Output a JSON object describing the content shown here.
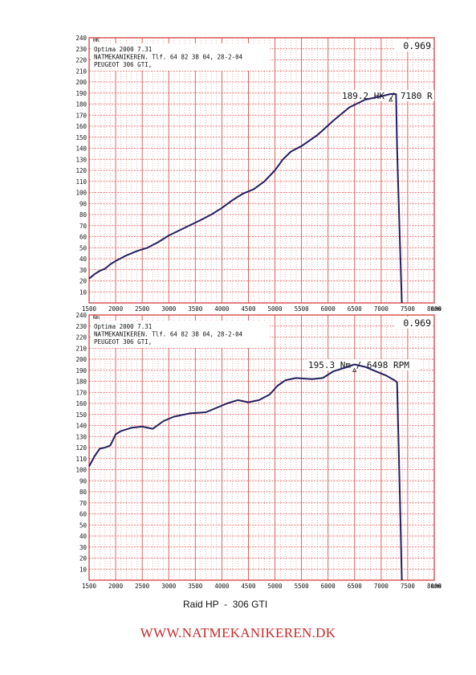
{
  "chart_data": [
    {
      "type": "line",
      "y_unit_label": "HK",
      "factor": "0.969",
      "header_lines": [
        "Optima 2000 7.31",
        "NATMEKANIKEREN. Tlf. 64 82 38 04, 28-2-04",
        "PEUGEOT 306 GTI,"
      ],
      "peak_label": "189.2 HK / 7180 R",
      "peak": {
        "x": 7180,
        "y": 189.2
      },
      "xlim": [
        1500,
        8000
      ],
      "ylim": [
        0,
        240
      ],
      "x_ticks": [
        "1500",
        "2000",
        "2500",
        "3000",
        "3500",
        "4000",
        "4500",
        "5000",
        "5500",
        "6000",
        "6500",
        "7000",
        "7500",
        "8000"
      ],
      "x_unit_label": "RPM",
      "y_ticks": [
        "10",
        "20",
        "30",
        "40",
        "50",
        "60",
        "70",
        "80",
        "90",
        "100",
        "110",
        "120",
        "130",
        "140",
        "150",
        "160",
        "170",
        "180",
        "190",
        "200",
        "210",
        "220",
        "230",
        "240"
      ],
      "grid": true,
      "series": [
        {
          "values": [
            {
              "x": 1500,
              "y": 22
            },
            {
              "x": 1600,
              "y": 26
            },
            {
              "x": 1700,
              "y": 29
            },
            {
              "x": 1800,
              "y": 31
            },
            {
              "x": 1900,
              "y": 35
            },
            {
              "x": 2000,
              "y": 38
            },
            {
              "x": 2200,
              "y": 43
            },
            {
              "x": 2400,
              "y": 47
            },
            {
              "x": 2600,
              "y": 50
            },
            {
              "x": 2800,
              "y": 55
            },
            {
              "x": 3000,
              "y": 61
            },
            {
              "x": 3300,
              "y": 68
            },
            {
              "x": 3600,
              "y": 75
            },
            {
              "x": 3800,
              "y": 80
            },
            {
              "x": 4000,
              "y": 86
            },
            {
              "x": 4200,
              "y": 93
            },
            {
              "x": 4400,
              "y": 99
            },
            {
              "x": 4600,
              "y": 103
            },
            {
              "x": 4800,
              "y": 110
            },
            {
              "x": 5000,
              "y": 120
            },
            {
              "x": 5150,
              "y": 130
            },
            {
              "x": 5300,
              "y": 137
            },
            {
              "x": 5500,
              "y": 142
            },
            {
              "x": 5800,
              "y": 152
            },
            {
              "x": 6100,
              "y": 165
            },
            {
              "x": 6400,
              "y": 177
            },
            {
              "x": 6700,
              "y": 184
            },
            {
              "x": 7000,
              "y": 187
            },
            {
              "x": 7180,
              "y": 189.2
            },
            {
              "x": 7280,
              "y": 189
            },
            {
              "x": 7300,
              "y": 140
            },
            {
              "x": 7350,
              "y": 60
            },
            {
              "x": 7390,
              "y": 0
            }
          ]
        }
      ]
    },
    {
      "type": "line",
      "y_unit_label": "Nm",
      "factor": "0.969",
      "header_lines": [
        "Optima 2000 7.31",
        "NATMEKANIKEREN. Tlf. 64 82 38 04, 28-2-04",
        "PEUGEOT 306 GTI,"
      ],
      "peak_label": "195.3 Nm / 6498 RPM",
      "peak": {
        "x": 6498,
        "y": 195.3
      },
      "xlim": [
        1500,
        8000
      ],
      "ylim": [
        0,
        240
      ],
      "x_ticks": [
        "1500",
        "2000",
        "2500",
        "3000",
        "3500",
        "4000",
        "4500",
        "5000",
        "5500",
        "6000",
        "6500",
        "7000",
        "7500",
        "8000"
      ],
      "x_unit_label": "RPM",
      "y_ticks": [
        "10",
        "20",
        "30",
        "40",
        "50",
        "60",
        "70",
        "80",
        "90",
        "100",
        "110",
        "120",
        "130",
        "140",
        "150",
        "160",
        "170",
        "180",
        "190",
        "200",
        "210",
        "220",
        "230",
        "240"
      ],
      "grid": true,
      "series": [
        {
          "values": [
            {
              "x": 1500,
              "y": 103
            },
            {
              "x": 1600,
              "y": 112
            },
            {
              "x": 1700,
              "y": 119
            },
            {
              "x": 1800,
              "y": 120
            },
            {
              "x": 1900,
              "y": 122
            },
            {
              "x": 2000,
              "y": 132
            },
            {
              "x": 2100,
              "y": 135
            },
            {
              "x": 2300,
              "y": 138
            },
            {
              "x": 2500,
              "y": 139
            },
            {
              "x": 2700,
              "y": 137
            },
            {
              "x": 2900,
              "y": 144
            },
            {
              "x": 3100,
              "y": 148
            },
            {
              "x": 3400,
              "y": 151
            },
            {
              "x": 3700,
              "y": 152
            },
            {
              "x": 3900,
              "y": 156
            },
            {
              "x": 4100,
              "y": 160
            },
            {
              "x": 4300,
              "y": 163
            },
            {
              "x": 4500,
              "y": 161
            },
            {
              "x": 4700,
              "y": 163
            },
            {
              "x": 4900,
              "y": 168
            },
            {
              "x": 5050,
              "y": 176
            },
            {
              "x": 5200,
              "y": 181
            },
            {
              "x": 5400,
              "y": 183
            },
            {
              "x": 5700,
              "y": 182
            },
            {
              "x": 5900,
              "y": 183
            },
            {
              "x": 6100,
              "y": 189
            },
            {
              "x": 6300,
              "y": 192
            },
            {
              "x": 6498,
              "y": 195.3
            },
            {
              "x": 6700,
              "y": 193
            },
            {
              "x": 6900,
              "y": 189
            },
            {
              "x": 7100,
              "y": 185
            },
            {
              "x": 7250,
              "y": 181
            },
            {
              "x": 7300,
              "y": 179
            },
            {
              "x": 7320,
              "y": 140
            },
            {
              "x": 7360,
              "y": 60
            },
            {
              "x": 7390,
              "y": 0
            }
          ]
        }
      ]
    }
  ],
  "caption": "Raid HP  -  306 GTI",
  "website": "WWW.NATMEKANIKEREN.DK",
  "colors": {
    "grid": "#e24d4d",
    "frame": "#d23030",
    "curve": "#22205e",
    "website": "#c62a2a"
  }
}
